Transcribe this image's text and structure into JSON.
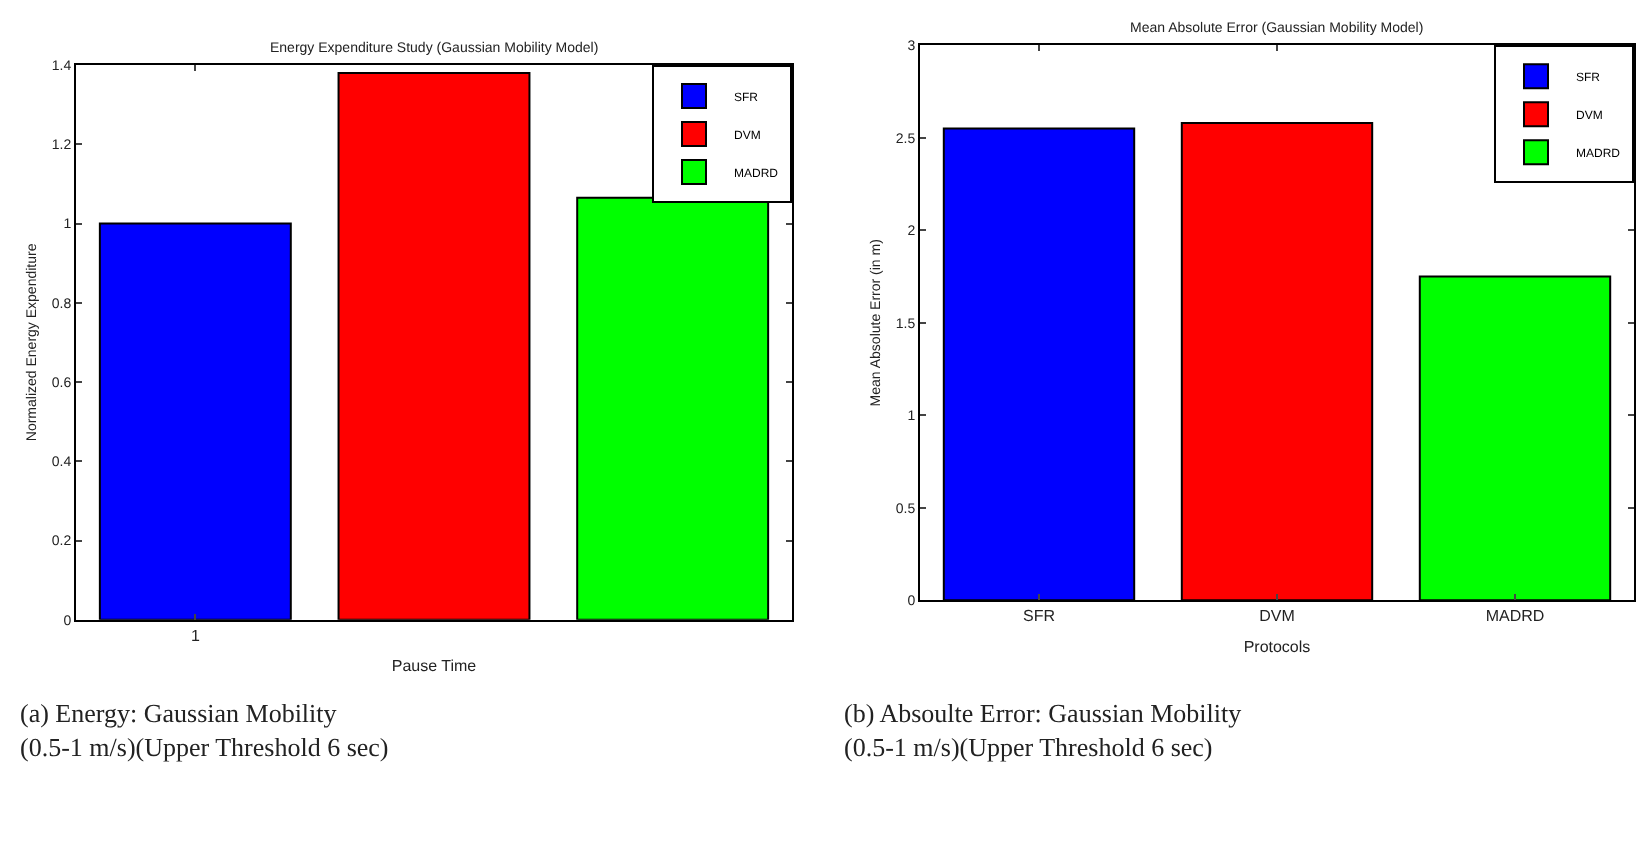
{
  "chart_data": [
    {
      "type": "bar",
      "title": "Energy Expenditure Study (Gaussian Mobility Model)",
      "xlabel": "Pause Time",
      "ylabel": "Normalized Energy Expenditure",
      "categories": [
        "1",
        null,
        null
      ],
      "series": [
        {
          "name": "SFR",
          "color": "#0000ff",
          "values": [
            1.0,
            null,
            null
          ]
        },
        {
          "name": "DVM",
          "color": "#ff0000",
          "values": [
            null,
            1.38,
            null
          ]
        },
        {
          "name": "MADRD",
          "color": "#00ff00",
          "values": [
            null,
            null,
            1.065
          ]
        }
      ],
      "ylim": [
        0,
        1.4
      ],
      "yticks": [
        0,
        0.2,
        0.4,
        0.6,
        0.8,
        1,
        1.2,
        1.4
      ],
      "legend": "top right",
      "grid": false,
      "annotations": [
        "(a) Energy: Gaussian Mobility (0.5-1 m/s)(Upper Threshold 6 sec)"
      ]
    },
    {
      "type": "bar",
      "title": "Mean Absolute Error (Gaussian Mobility Model)",
      "xlabel": "Protocols",
      "ylabel": "Mean Absolute Error (in m)",
      "categories": [
        "SFR",
        "DVM",
        "MADRD"
      ],
      "series": [
        {
          "name": "SFR",
          "color": "#0000ff",
          "values": [
            2.55,
            null,
            null
          ]
        },
        {
          "name": "DVM",
          "color": "#ff0000",
          "values": [
            null,
            2.58,
            null
          ]
        },
        {
          "name": "MADRD",
          "color": "#00ff00",
          "values": [
            null,
            null,
            1.75
          ]
        }
      ],
      "ylim": [
        0,
        3
      ],
      "yticks": [
        0,
        0.5,
        1,
        1.5,
        2,
        2.5,
        3
      ],
      "legend": "top right",
      "grid": false,
      "annotations": [
        "(b) Absoulte Error: Gaussian Mobility (0.5-1 m/s)(Upper Threshold 6 sec)"
      ]
    }
  ]
}
